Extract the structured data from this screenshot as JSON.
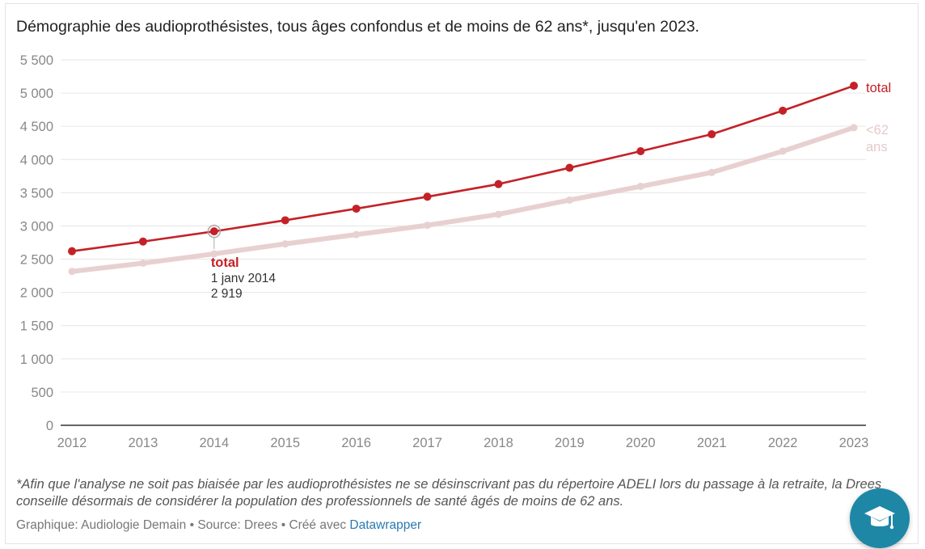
{
  "title": "Démographie des audioprothésistes, tous âges confondus et de moins de 62 ans*, jusqu'en 2023.",
  "note": "*Afin que l'analyse ne soit pas biaisée par les audioprothésistes ne se désinscrivant pas du répertoire ADELI lors du passage à la retraite, la Drees conseille désormais de considérer la population des professionnels de santé âgés de moins de 62 ans.",
  "footer": {
    "graphic": "Graphique: Audiologie Demain",
    "separator": "•",
    "source": "Source: Drees",
    "created": "Créé avec",
    "tool": "Datawrapper"
  },
  "fab_icon": "graduation-cap-icon",
  "colors": {
    "total": "#c42127",
    "under62": "#e8d0d1",
    "under62_label": "#e6c9ca",
    "grid": "#e6e6e6",
    "axis": "#333333",
    "tick": "#888888",
    "fab": "#1e87a6"
  },
  "chart_data": {
    "type": "line",
    "x": [
      "2012",
      "2013",
      "2014",
      "2015",
      "2016",
      "2017",
      "2018",
      "2019",
      "2020",
      "2021",
      "2022",
      "2023"
    ],
    "y_ticks": [
      "0",
      "500",
      "1 000",
      "1 500",
      "2 000",
      "2 500",
      "3 000",
      "3 500",
      "4 000",
      "4 500",
      "5 000",
      "5 500"
    ],
    "ylim": [
      0,
      5500
    ],
    "grid": true,
    "legend": "direct labels at line ends",
    "series": [
      {
        "name": "total",
        "values": [
          2620,
          2765,
          2919,
          3085,
          3260,
          3440,
          3630,
          3875,
          4125,
          4380,
          4735,
          5110
        ]
      },
      {
        "name": "<62 ans",
        "values": [
          2315,
          2440,
          2580,
          2730,
          2870,
          3010,
          3175,
          3390,
          3595,
          3805,
          4125,
          4480
        ]
      }
    ],
    "tooltip": {
      "series": "total",
      "date": "1 janv 2014",
      "value": "2 919",
      "index": 2
    }
  }
}
